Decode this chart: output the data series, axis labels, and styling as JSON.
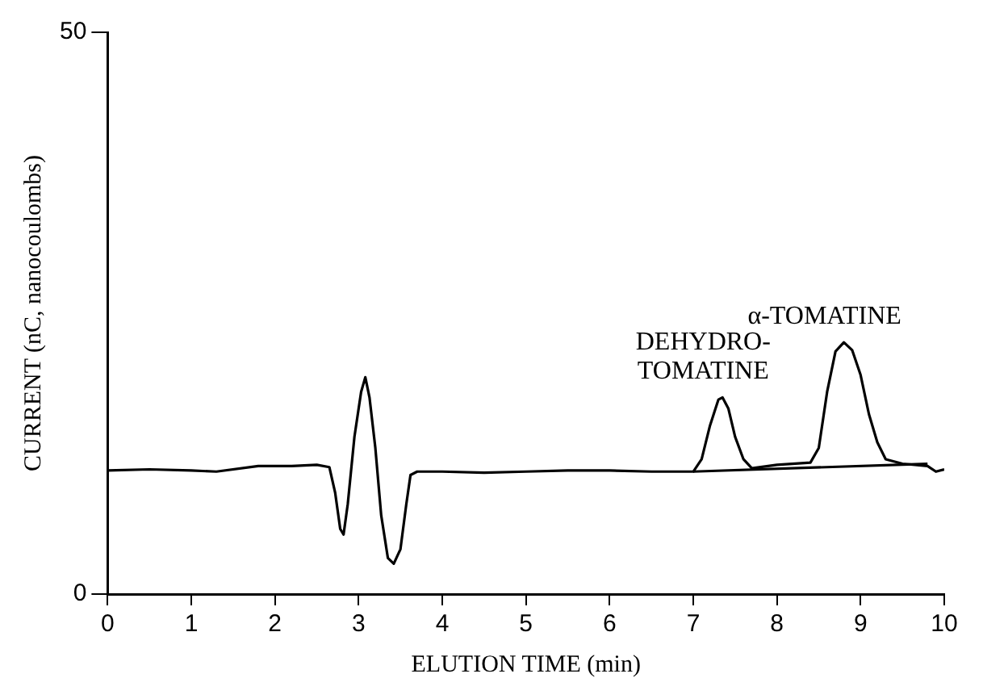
{
  "chart_data": {
    "type": "line",
    "xlabel": "ELUTION TIME (min)",
    "ylabel": "CURRENT (nC, nanocoulombs)",
    "xlim": [
      0,
      10
    ],
    "xticks": [
      0,
      1,
      2,
      3,
      4,
      5,
      6,
      7,
      8,
      9,
      10
    ],
    "ylim": [
      0,
      50
    ],
    "yticks": [
      0,
      50
    ],
    "grid": false,
    "legend": false,
    "marker": "none",
    "line_style": "solid",
    "series": [
      {
        "color": "#000000",
        "x": [
          0,
          0.5,
          1,
          1.3,
          1.8,
          2.2,
          2.5,
          2.65,
          2.72,
          2.78,
          2.82,
          2.87,
          2.95,
          3.03,
          3.08,
          3.13,
          3.2,
          3.27,
          3.35,
          3.42,
          3.5,
          3.57,
          3.62,
          3.7,
          4,
          4.5,
          5,
          5.5,
          6,
          6.5,
          7,
          7.1,
          7.2,
          7.3,
          7.35,
          7.42,
          7.5,
          7.6,
          7.7,
          8,
          8.4,
          8.5,
          8.6,
          8.7,
          8.8,
          8.9,
          9,
          9.1,
          9.2,
          9.3,
          9.5,
          9.8,
          9.9,
          10
        ],
        "values": [
          11,
          11.1,
          11,
          10.9,
          11.4,
          11.4,
          11.5,
          11.3,
          9,
          5.8,
          5.3,
          8,
          14,
          18,
          19.3,
          17.5,
          13,
          7,
          3.2,
          2.7,
          4,
          8,
          10.6,
          10.9,
          10.9,
          10.8,
          10.9,
          11,
          11,
          10.9,
          10.9,
          12,
          15,
          17.3,
          17.5,
          16.5,
          14,
          12,
          11.2,
          11.5,
          11.7,
          13,
          18,
          21.6,
          22.4,
          21.7,
          19.5,
          16,
          13.5,
          12,
          11.6,
          11.4,
          10.9,
          11.1
        ]
      },
      {
        "color": "#000000",
        "x": [
          7,
          9.8
        ],
        "values": [
          10.9,
          11.6
        ]
      }
    ],
    "annotations": [
      {
        "text": "DEHYDRO-\nTOMATINE",
        "x": 7.35,
        "y": 17.5
      },
      {
        "text": "α-TOMATINE",
        "x": 8.8,
        "y": 22.4
      }
    ]
  }
}
